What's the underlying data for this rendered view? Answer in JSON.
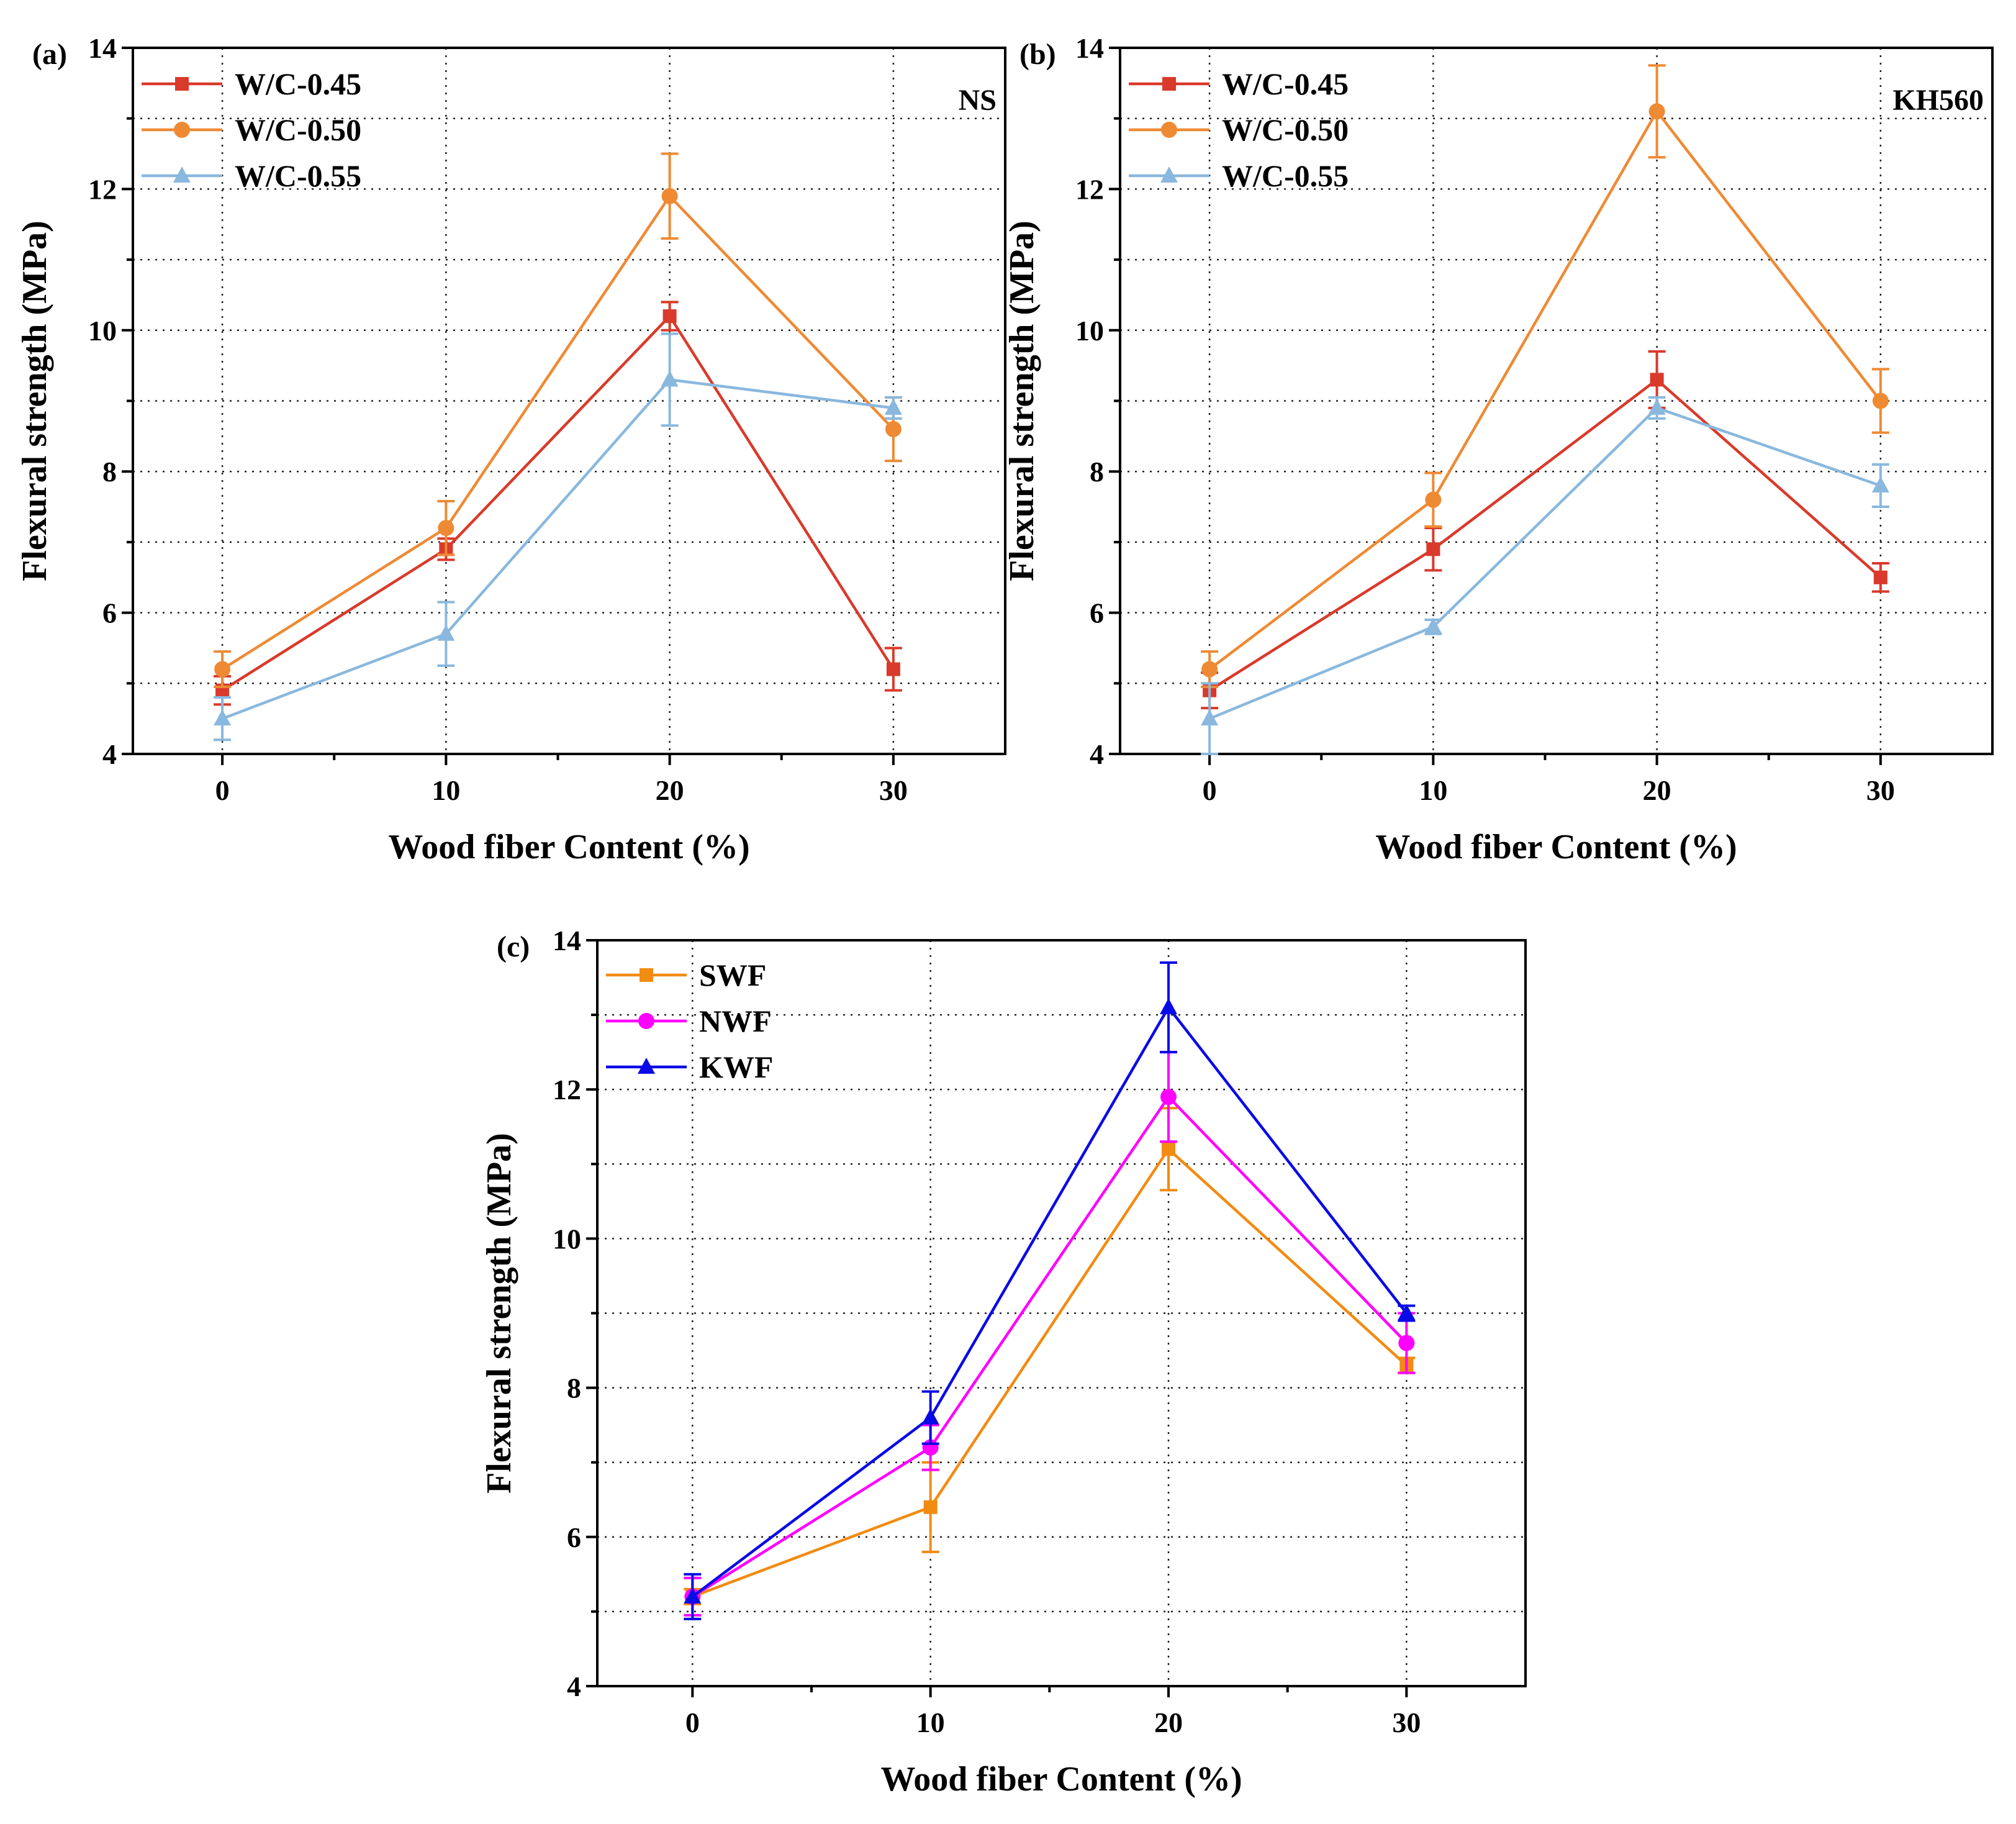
{
  "chart_data": [
    {
      "type": "line",
      "panel_label": "(a)",
      "annotation": "NS",
      "xlabel": "Wood fiber Content (%)",
      "ylabel": "Flexural strength (MPa)",
      "x": [
        0,
        10,
        20,
        30
      ],
      "x_tick_labels": [
        "0",
        "10",
        "20",
        "30"
      ],
      "xlim": [
        -4,
        35
      ],
      "ylim": [
        4,
        14
      ],
      "y_ticks": [
        4,
        6,
        8,
        10,
        12,
        14
      ],
      "y_tick_labels": [
        "4",
        "6",
        "8",
        "10",
        "12",
        "14"
      ],
      "grid": true,
      "legend_position": "top-left",
      "series": [
        {
          "name": "W/C-0.45",
          "color": "#d93a2b",
          "marker": "square",
          "values": [
            4.9,
            6.9,
            10.2,
            5.2
          ],
          "errors": [
            0.2,
            0.15,
            0.2,
            0.3
          ]
        },
        {
          "name": "W/C-0.50",
          "color": "#ee8a34",
          "marker": "circle",
          "values": [
            5.2,
            7.2,
            11.9,
            8.6
          ],
          "errors": [
            0.25,
            0.38,
            0.6,
            0.45
          ]
        },
        {
          "name": "W/C-0.55",
          "color": "#8ab8de",
          "marker": "triangle",
          "values": [
            4.5,
            5.7,
            9.3,
            8.9
          ],
          "errors": [
            0.3,
            0.45,
            0.65,
            0.15
          ]
        }
      ]
    },
    {
      "type": "line",
      "panel_label": "(b)",
      "annotation": "KH560",
      "xlabel": "Wood fiber Content (%)",
      "ylabel": "Flexural strength (MPa)",
      "x": [
        0,
        10,
        20,
        30
      ],
      "x_tick_labels": [
        "0",
        "10",
        "20",
        "30"
      ],
      "xlim": [
        -4,
        35
      ],
      "ylim": [
        4,
        14
      ],
      "y_ticks": [
        4,
        6,
        8,
        10,
        12,
        14
      ],
      "y_tick_labels": [
        "4",
        "6",
        "8",
        "10",
        "12",
        "14"
      ],
      "grid": true,
      "legend_position": "top-left",
      "series": [
        {
          "name": "W/C-0.45",
          "color": "#d93a2b",
          "marker": "square",
          "values": [
            4.9,
            6.9,
            9.3,
            6.5
          ],
          "errors": [
            0.25,
            0.3,
            0.4,
            0.2
          ]
        },
        {
          "name": "W/C-0.50",
          "color": "#ee8a34",
          "marker": "circle",
          "values": [
            5.2,
            7.6,
            13.1,
            9.0
          ],
          "errors": [
            0.25,
            0.38,
            0.65,
            0.45
          ]
        },
        {
          "name": "W/C-0.55",
          "color": "#8ab8de",
          "marker": "triangle",
          "values": [
            4.5,
            5.8,
            8.9,
            7.8
          ],
          "errors": [
            0.5,
            0.1,
            0.15,
            0.3
          ]
        }
      ]
    },
    {
      "type": "line",
      "panel_label": "(c)",
      "annotation": "",
      "xlabel": "Wood fiber Content (%)",
      "ylabel": "Flexural strength (MPa)",
      "x": [
        0,
        10,
        20,
        30
      ],
      "x_tick_labels": [
        "0",
        "10",
        "20",
        "30"
      ],
      "xlim": [
        -4,
        35
      ],
      "ylim": [
        4,
        14
      ],
      "y_ticks": [
        4,
        6,
        8,
        10,
        12,
        14
      ],
      "y_tick_labels": [
        "4",
        "6",
        "8",
        "10",
        "12",
        "14"
      ],
      "grid": true,
      "legend_position": "top-left",
      "series": [
        {
          "name": "SWF",
          "color": "#f28b12",
          "marker": "square",
          "values": [
            5.2,
            6.4,
            11.2,
            8.3
          ],
          "errors": [
            0.1,
            0.6,
            0.55,
            0.1
          ]
        },
        {
          "name": "NWF",
          "color": "#ff00ff",
          "marker": "circle",
          "values": [
            5.2,
            7.2,
            11.9,
            8.6
          ],
          "errors": [
            0.25,
            0.3,
            0.6,
            0.4
          ]
        },
        {
          "name": "KWF",
          "color": "#0a0ae6",
          "marker": "triangle",
          "values": [
            5.2,
            7.6,
            13.1,
            9.0
          ],
          "errors": [
            0.3,
            0.35,
            0.6,
            0.1
          ]
        }
      ]
    }
  ]
}
